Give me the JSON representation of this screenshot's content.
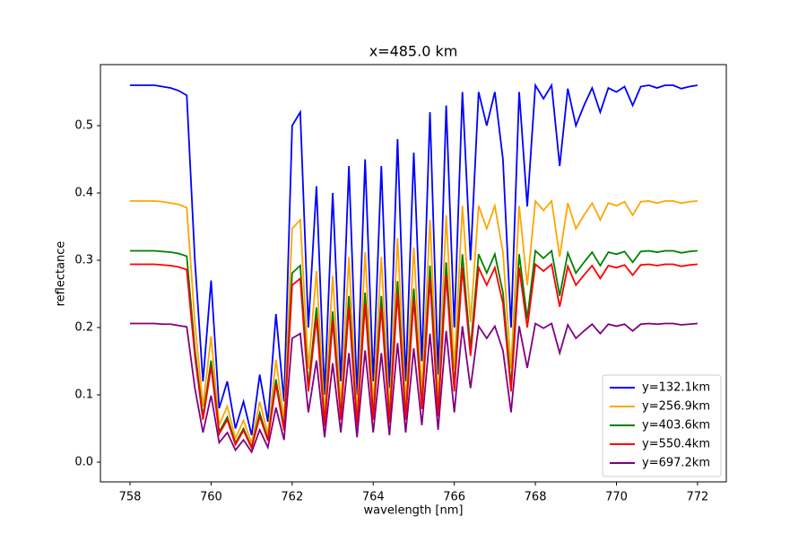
{
  "chart_data": {
    "type": "line",
    "title": "x=485.0 km",
    "x_label": "wavelength [nm]",
    "y_label": "reflectance",
    "x": [
      758.0,
      758.2,
      758.4,
      758.6,
      758.8,
      759.0,
      759.2,
      759.4,
      759.6,
      759.8,
      760.0,
      760.2,
      760.4,
      760.6,
      760.8,
      761.0,
      761.2,
      761.4,
      761.6,
      761.8,
      762.0,
      762.2,
      762.4,
      762.6,
      762.8,
      763.0,
      763.2,
      763.4,
      763.6,
      763.8,
      764.0,
      764.2,
      764.4,
      764.6,
      764.8,
      765.0,
      765.2,
      765.4,
      765.6,
      765.8,
      766.0,
      766.2,
      766.4,
      766.6,
      766.8,
      767.0,
      767.2,
      767.4,
      767.6,
      767.8,
      768.0,
      768.2,
      768.4,
      768.6,
      768.8,
      769.0,
      769.2,
      769.4,
      769.6,
      769.8,
      770.0,
      770.2,
      770.4,
      770.6,
      770.8,
      771.0,
      771.2,
      771.4,
      771.6,
      771.8,
      772.0
    ],
    "series": [
      {
        "name": "y=132.1km",
        "color": "#0000ff",
        "values": [
          0.56,
          0.56,
          0.56,
          0.56,
          0.558,
          0.556,
          0.552,
          0.545,
          0.3,
          0.12,
          0.27,
          0.08,
          0.12,
          0.05,
          0.09,
          0.04,
          0.13,
          0.06,
          0.22,
          0.09,
          0.5,
          0.52,
          0.2,
          0.41,
          0.1,
          0.4,
          0.12,
          0.44,
          0.1,
          0.45,
          0.12,
          0.44,
          0.11,
          0.48,
          0.12,
          0.46,
          0.15,
          0.52,
          0.13,
          0.53,
          0.2,
          0.55,
          0.3,
          0.55,
          0.5,
          0.55,
          0.45,
          0.2,
          0.55,
          0.38,
          0.56,
          0.54,
          0.56,
          0.44,
          0.555,
          0.5,
          0.53,
          0.556,
          0.52,
          0.556,
          0.55,
          0.558,
          0.53,
          0.558,
          0.56,
          0.556,
          0.56,
          0.56,
          0.555,
          0.558,
          0.56
        ]
      },
      {
        "name": "y=256.9km",
        "color": "#ffa500",
        "values": [
          0.388,
          0.388,
          0.388,
          0.388,
          0.387,
          0.385,
          0.383,
          0.378,
          0.208,
          0.083,
          0.187,
          0.055,
          0.083,
          0.035,
          0.062,
          0.028,
          0.09,
          0.042,
          0.152,
          0.062,
          0.347,
          0.36,
          0.139,
          0.284,
          0.069,
          0.277,
          0.083,
          0.305,
          0.069,
          0.312,
          0.083,
          0.305,
          0.076,
          0.333,
          0.083,
          0.319,
          0.104,
          0.36,
          0.09,
          0.367,
          0.139,
          0.381,
          0.208,
          0.381,
          0.347,
          0.381,
          0.312,
          0.139,
          0.381,
          0.263,
          0.388,
          0.374,
          0.388,
          0.305,
          0.385,
          0.347,
          0.367,
          0.385,
          0.36,
          0.385,
          0.381,
          0.387,
          0.367,
          0.387,
          0.388,
          0.385,
          0.388,
          0.388,
          0.385,
          0.387,
          0.388
        ]
      },
      {
        "name": "y=403.6km",
        "color": "#008000",
        "values": [
          0.314,
          0.314,
          0.314,
          0.314,
          0.313,
          0.312,
          0.31,
          0.306,
          0.168,
          0.067,
          0.151,
          0.045,
          0.067,
          0.028,
          0.05,
          0.022,
          0.073,
          0.034,
          0.123,
          0.05,
          0.281,
          0.292,
          0.112,
          0.23,
          0.056,
          0.224,
          0.067,
          0.247,
          0.056,
          0.252,
          0.067,
          0.247,
          0.062,
          0.269,
          0.067,
          0.258,
          0.084,
          0.292,
          0.073,
          0.297,
          0.112,
          0.309,
          0.168,
          0.309,
          0.281,
          0.309,
          0.252,
          0.112,
          0.309,
          0.213,
          0.314,
          0.303,
          0.314,
          0.247,
          0.311,
          0.281,
          0.297,
          0.312,
          0.292,
          0.312,
          0.309,
          0.313,
          0.297,
          0.313,
          0.314,
          0.312,
          0.314,
          0.314,
          0.311,
          0.313,
          0.314
        ]
      },
      {
        "name": "y=550.4km",
        "color": "#ff0000",
        "values": [
          0.294,
          0.294,
          0.294,
          0.294,
          0.293,
          0.292,
          0.29,
          0.286,
          0.158,
          0.063,
          0.142,
          0.042,
          0.063,
          0.026,
          0.047,
          0.021,
          0.068,
          0.032,
          0.116,
          0.047,
          0.263,
          0.273,
          0.105,
          0.215,
          0.053,
          0.21,
          0.063,
          0.231,
          0.053,
          0.236,
          0.063,
          0.231,
          0.058,
          0.252,
          0.063,
          0.242,
          0.079,
          0.273,
          0.068,
          0.278,
          0.105,
          0.289,
          0.158,
          0.289,
          0.263,
          0.289,
          0.236,
          0.105,
          0.289,
          0.2,
          0.294,
          0.284,
          0.294,
          0.231,
          0.291,
          0.263,
          0.278,
          0.292,
          0.273,
          0.292,
          0.289,
          0.293,
          0.278,
          0.293,
          0.294,
          0.292,
          0.294,
          0.294,
          0.291,
          0.293,
          0.294
        ]
      },
      {
        "name": "y=697.2km",
        "color": "#800080",
        "values": [
          0.206,
          0.206,
          0.206,
          0.206,
          0.205,
          0.205,
          0.203,
          0.201,
          0.11,
          0.044,
          0.099,
          0.029,
          0.044,
          0.018,
          0.033,
          0.015,
          0.048,
          0.022,
          0.081,
          0.033,
          0.184,
          0.191,
          0.074,
          0.151,
          0.037,
          0.147,
          0.044,
          0.162,
          0.037,
          0.166,
          0.044,
          0.162,
          0.04,
          0.177,
          0.044,
          0.169,
          0.055,
          0.191,
          0.048,
          0.195,
          0.074,
          0.202,
          0.11,
          0.202,
          0.184,
          0.202,
          0.166,
          0.074,
          0.202,
          0.14,
          0.206,
          0.199,
          0.206,
          0.162,
          0.204,
          0.184,
          0.195,
          0.205,
          0.191,
          0.205,
          0.202,
          0.205,
          0.195,
          0.205,
          0.206,
          0.205,
          0.206,
          0.206,
          0.204,
          0.205,
          0.206
        ]
      }
    ],
    "xlim": [
      757.27,
      772.71
    ],
    "xticks": [
      758,
      760,
      762,
      764,
      766,
      768,
      770,
      772
    ],
    "ylim": [
      -0.0293,
      0.5907
    ],
    "yticks": [
      {
        "value": 0,
        "label": "0.0"
      },
      0.1,
      0.2,
      0.3,
      0.4,
      0.5
    ],
    "legend": "lower right"
  }
}
